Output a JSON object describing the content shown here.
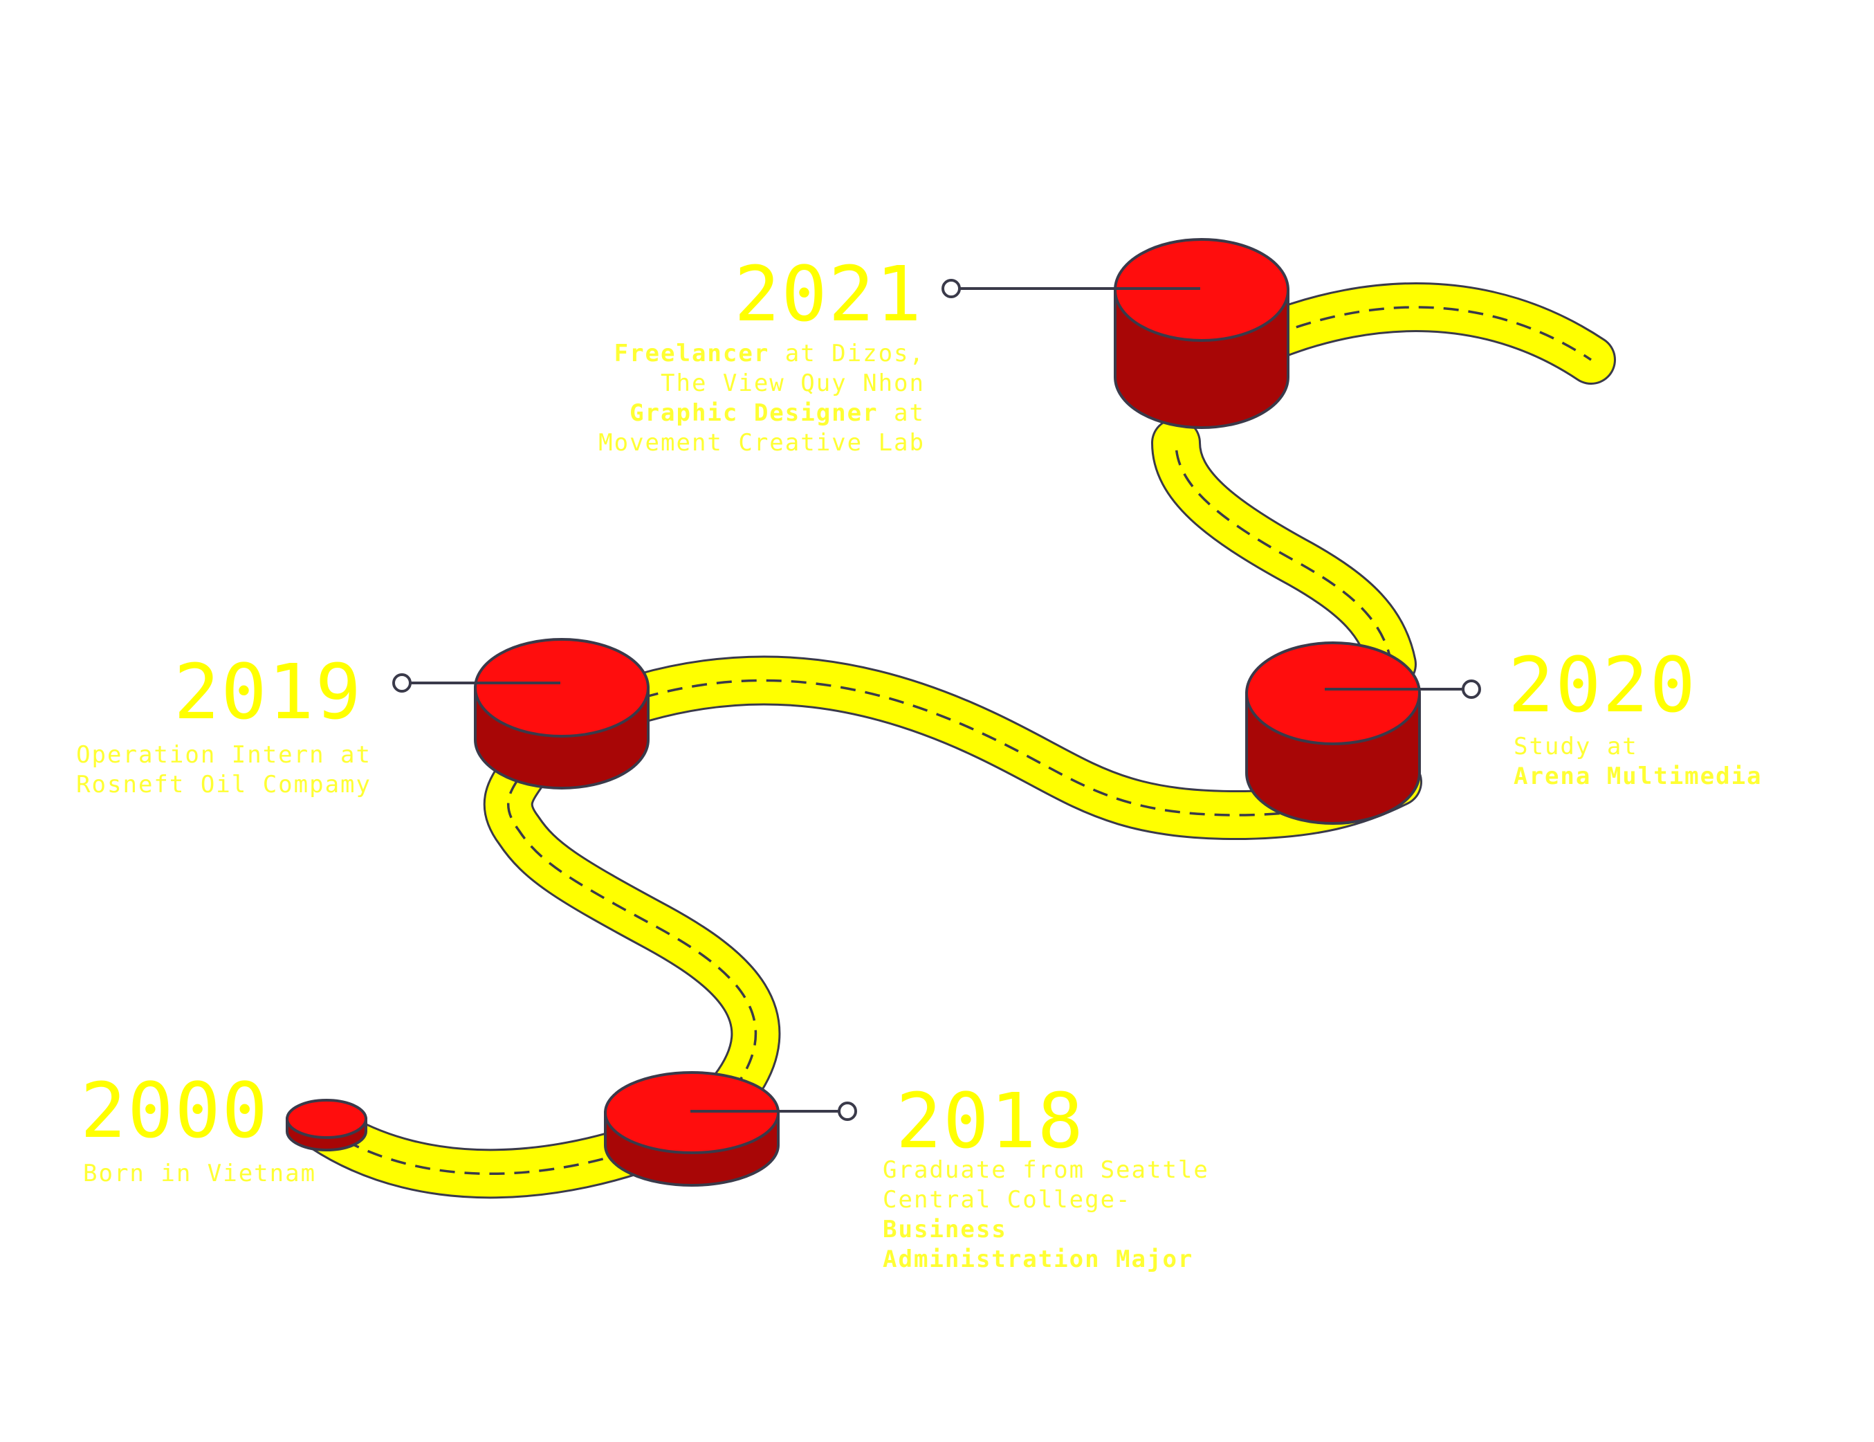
{
  "colors": {
    "road": "#ffff00",
    "road_outline": "#3a3a4a",
    "disc_top": "#ff0d0d",
    "disc_side": "#a80606",
    "connector": "#3a3a4a",
    "text_year": "#ffff00",
    "text_desc": "#ffff33",
    "background": "#ffffff"
  },
  "milestones": [
    {
      "year": "2000",
      "lines": [
        [
          {
            "text": "Born in Vietnam",
            "bold": false
          }
        ]
      ]
    },
    {
      "year": "2018",
      "lines": [
        [
          {
            "text": "Graduate from Seattle",
            "bold": false
          }
        ],
        [
          {
            "text": "Central College-",
            "bold": false
          }
        ],
        [
          {
            "text": "Business",
            "bold": true
          }
        ],
        [
          {
            "text": "Administration Major",
            "bold": true
          }
        ]
      ]
    },
    {
      "year": "2019",
      "lines": [
        [
          {
            "text": "Operation Intern at",
            "bold": false
          }
        ],
        [
          {
            "text": "Rosneft Oil Compamy",
            "bold": false
          }
        ]
      ]
    },
    {
      "year": "2020",
      "lines": [
        [
          {
            "text": "Study at",
            "bold": false
          }
        ],
        [
          {
            "text": "Arena Multimedia",
            "bold": true
          }
        ]
      ]
    },
    {
      "year": "2021",
      "lines": [
        [
          {
            "text": "Freelancer",
            "bold": true
          },
          {
            "text": " at Dizos,",
            "bold": false
          }
        ],
        [
          {
            "text": "The View Quy Nhon",
            "bold": false
          }
        ],
        [
          {
            "text": "Graphic Designer",
            "bold": true
          },
          {
            "text": " at",
            "bold": false
          }
        ],
        [
          {
            "text": "Movement Creative Lab",
            "bold": false
          }
        ]
      ]
    }
  ]
}
